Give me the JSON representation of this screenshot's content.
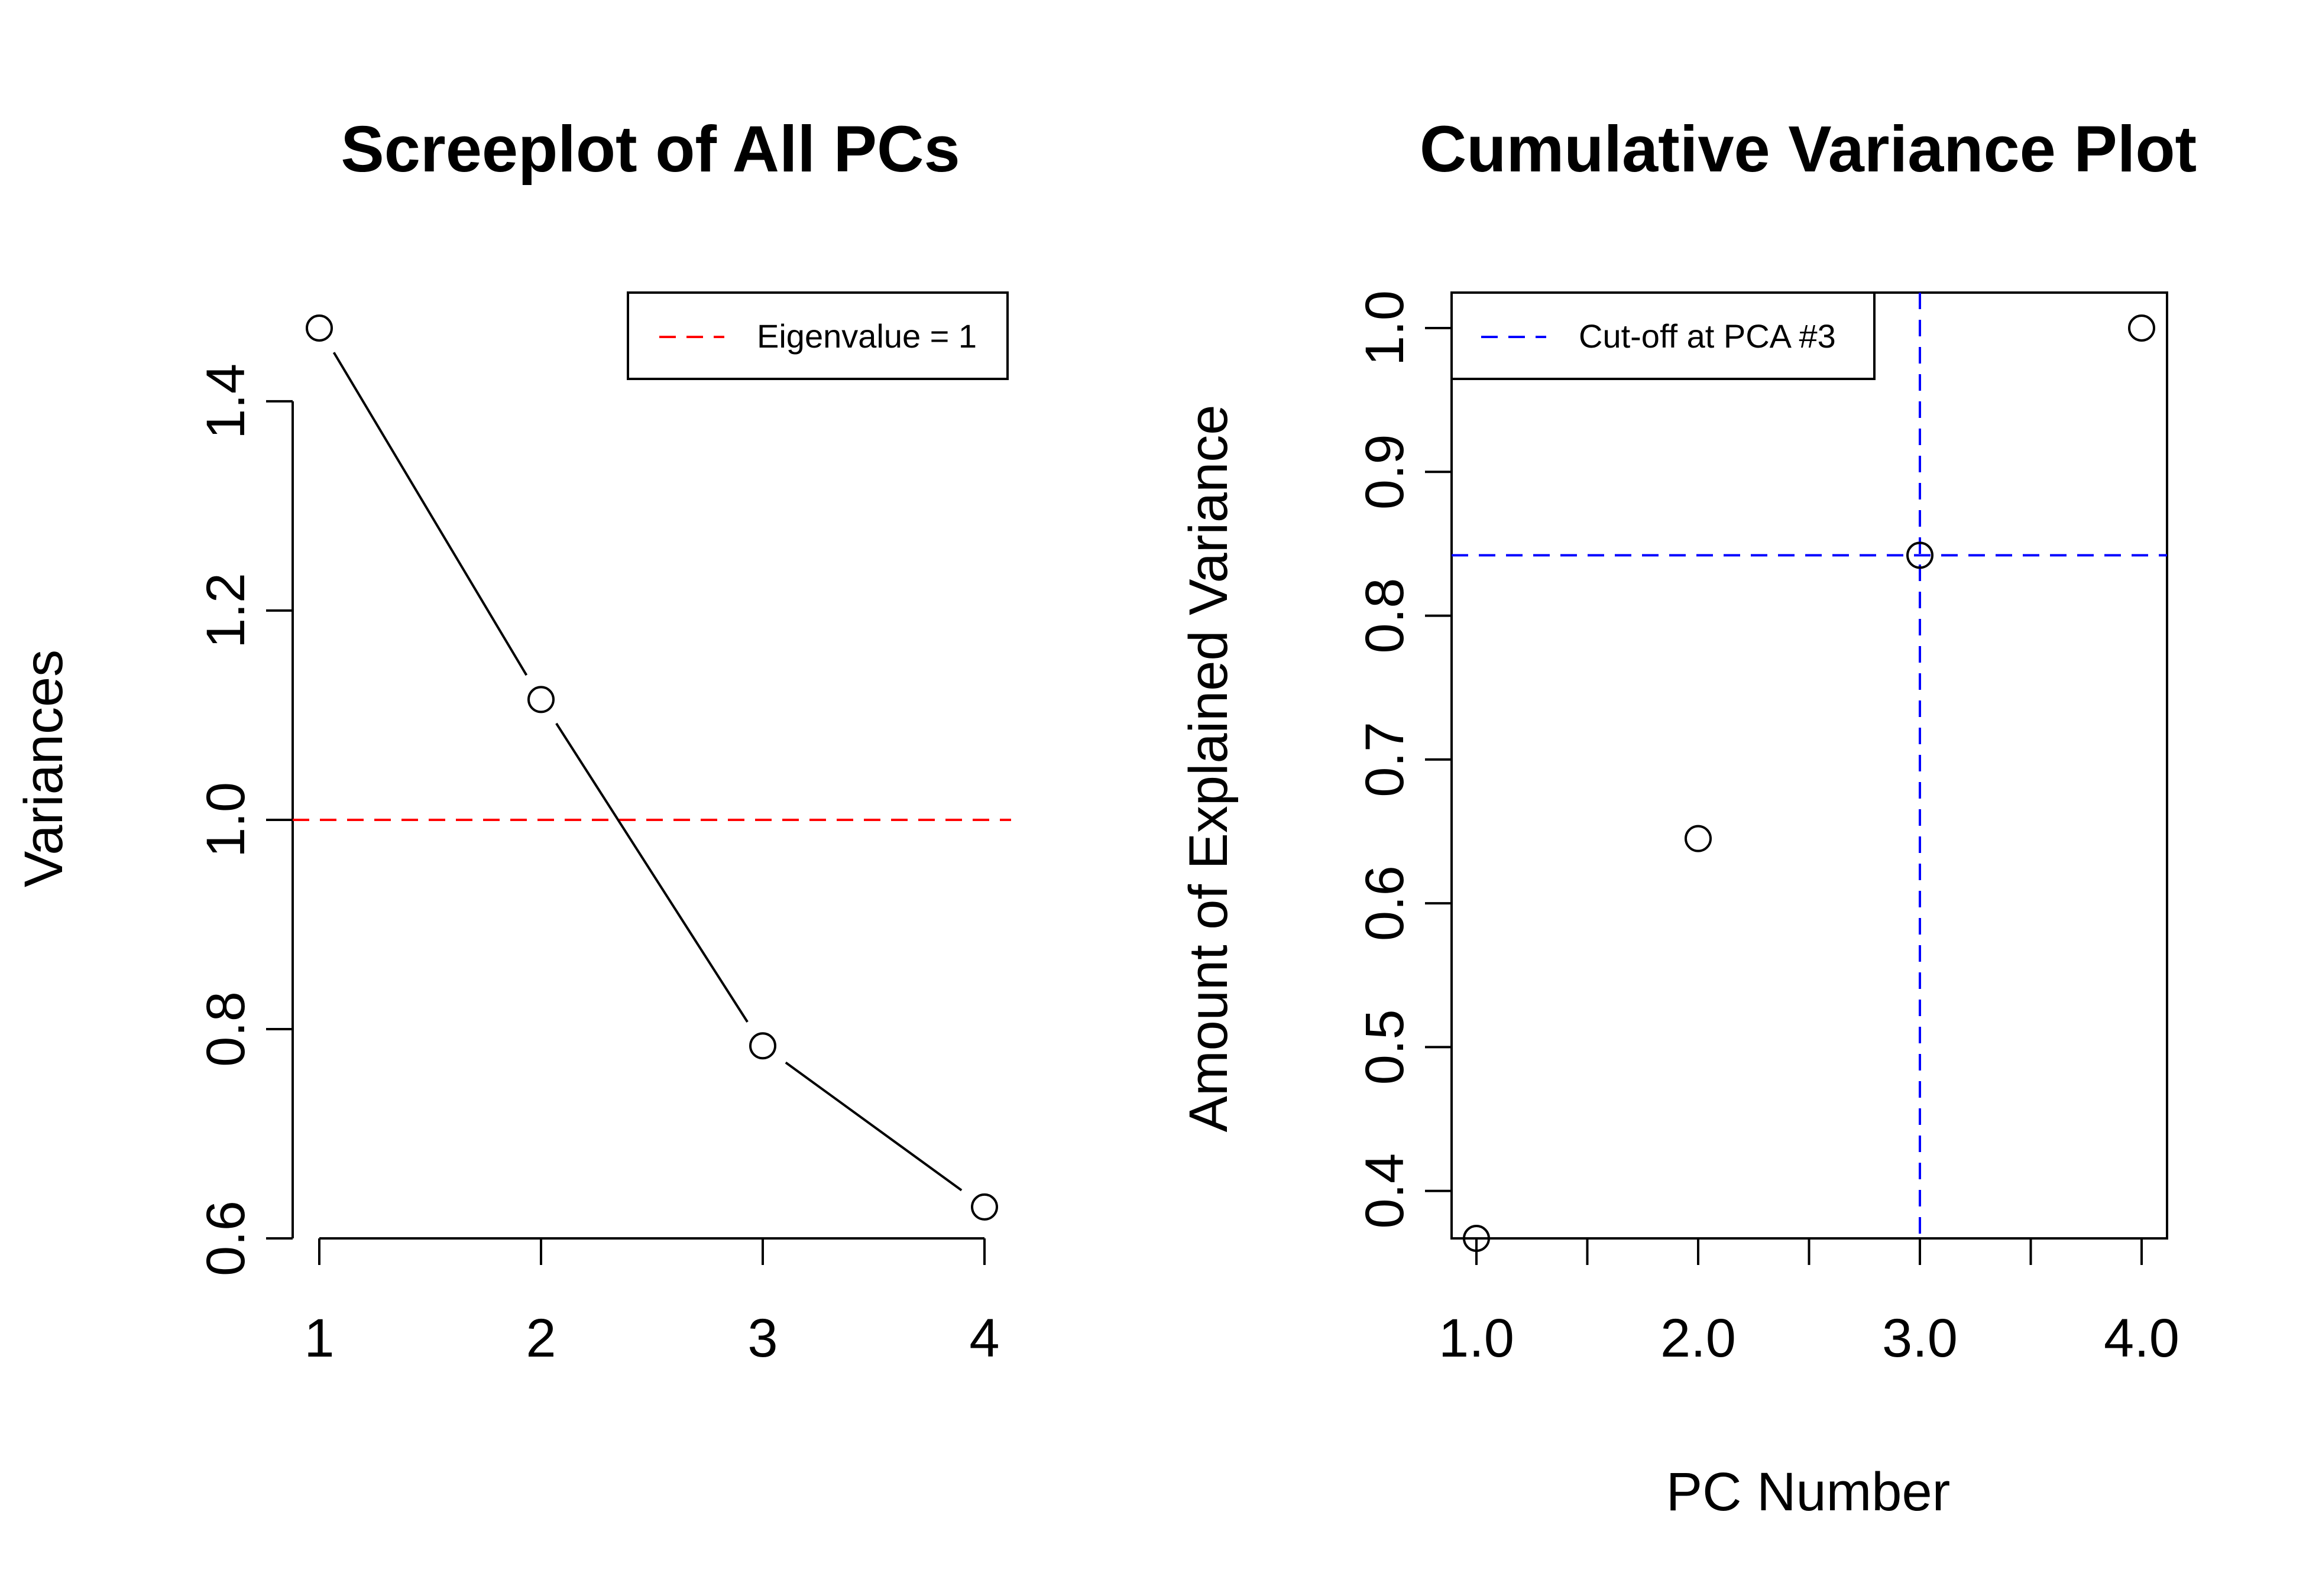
{
  "chart_data": [
    {
      "type": "line",
      "title": "Screeplot of All PCs",
      "xlabel": "",
      "ylabel": "Variances",
      "x": [
        1,
        2,
        3,
        4
      ],
      "values": [
        1.47,
        1.115,
        0.784,
        0.63
      ],
      "xlim": [
        1,
        4
      ],
      "ylim": [
        0.6,
        1.47
      ],
      "xticks": [
        1,
        2,
        3,
        4
      ],
      "xtick_labels": [
        "1",
        "2",
        "3",
        "4"
      ],
      "yticks": [
        0.6,
        0.8,
        1.0,
        1.2,
        1.4
      ],
      "ytick_labels": [
        "0.6",
        "0.8",
        "1.0",
        "1.2",
        "1.4"
      ],
      "hline": {
        "y": 1.0,
        "style": "dashed",
        "color": "#ff0000"
      },
      "legend": {
        "position": "top-right",
        "entries": [
          {
            "label": "Eigenvalue = 1",
            "color": "#ff0000",
            "style": "dashed"
          }
        ]
      },
      "grid": false,
      "box": false
    },
    {
      "type": "scatter",
      "title": "Cumulative Variance Plot",
      "xlabel": "PC Number",
      "ylabel": "Amount of Explained Variance",
      "x": [
        1,
        2,
        3,
        4
      ],
      "values": [
        0.367,
        0.645,
        0.842,
        1.0
      ],
      "xlim": [
        1,
        4
      ],
      "ylim": [
        0.367,
        1.0
      ],
      "xticks": [
        1.0,
        1.5,
        2.0,
        2.5,
        3.0,
        3.5,
        4.0
      ],
      "xtick_labels": [
        "1.0",
        "2.0",
        "3.0",
        "4.0"
      ],
      "xtick_label_values": [
        1.0,
        2.0,
        3.0,
        4.0
      ],
      "yticks": [
        0.4,
        0.5,
        0.6,
        0.7,
        0.8,
        0.9,
        1.0
      ],
      "ytick_labels": [
        "0.4",
        "0.5",
        "0.6",
        "0.7",
        "0.8",
        "0.9",
        "1.0"
      ],
      "vline": {
        "x": 3,
        "style": "dashed",
        "color": "#0000ff"
      },
      "hline": {
        "y": 0.842,
        "style": "dashed",
        "color": "#0000ff"
      },
      "legend": {
        "position": "top-left",
        "entries": [
          {
            "label": "Cut-off at PCA #3",
            "color": "#0000ff",
            "style": "dashed"
          }
        ]
      },
      "grid": false,
      "box": true
    }
  ]
}
